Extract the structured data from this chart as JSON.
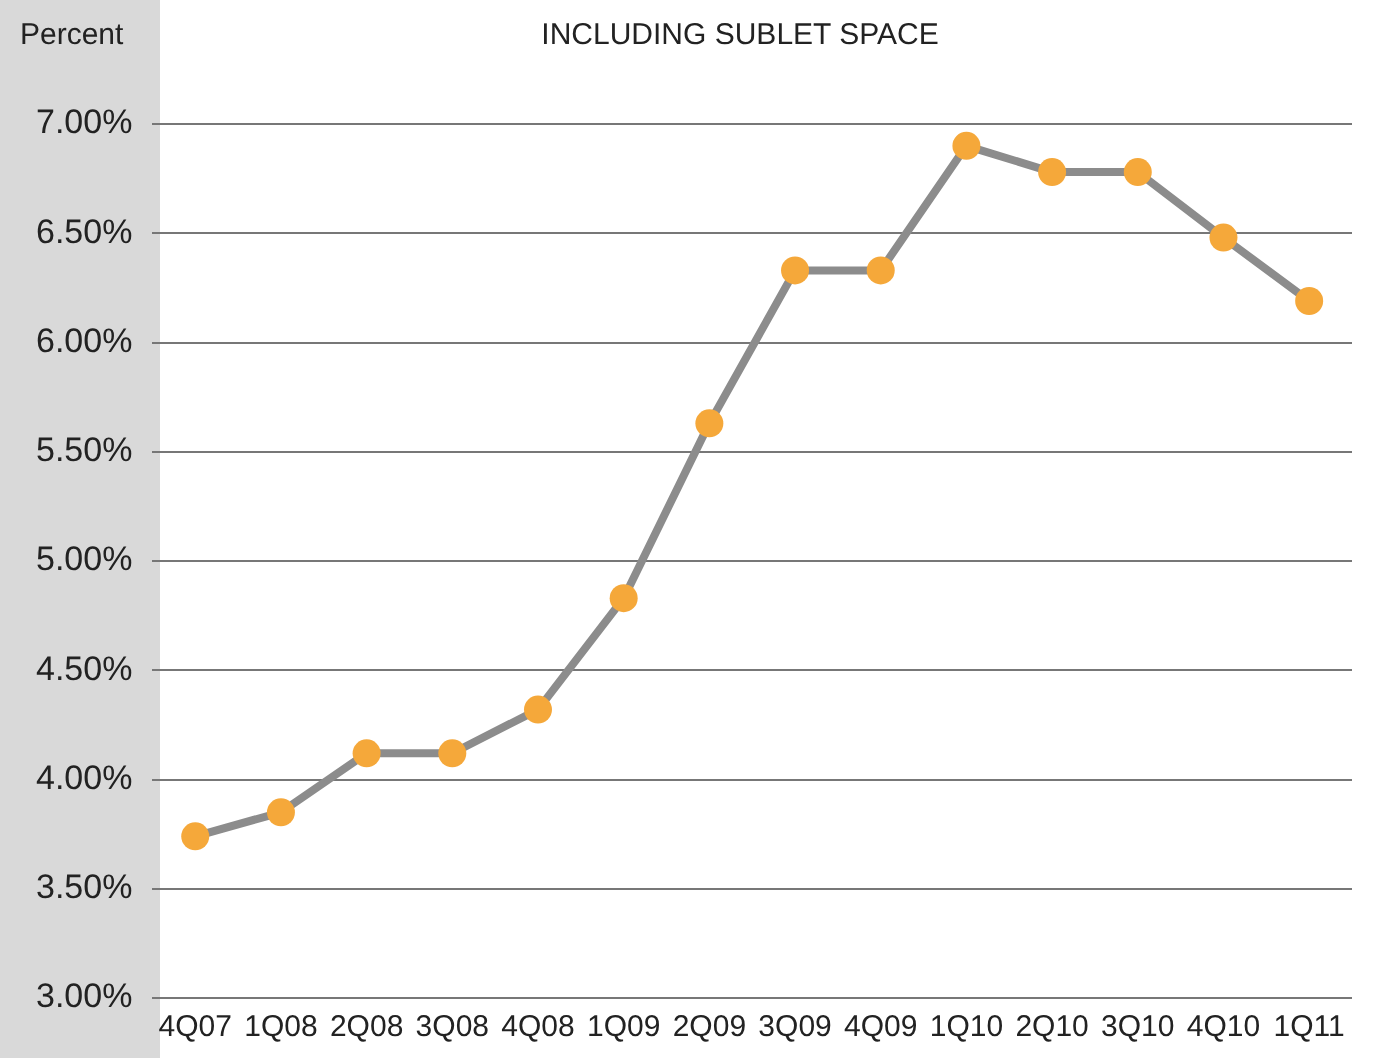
{
  "chart_data": {
    "type": "line",
    "title": "INCLUDING SUBLET SPACE",
    "ylabel": "Percent",
    "categories": [
      "4Q07",
      "1Q08",
      "2Q08",
      "3Q08",
      "4Q08",
      "1Q09",
      "2Q09",
      "3Q09",
      "4Q09",
      "1Q10",
      "2Q10",
      "3Q10",
      "4Q10",
      "1Q11"
    ],
    "series": [
      {
        "color": "#8c8c8c",
        "colors": [
          "#f5a83a",
          "#f5a83a",
          "#f5a83a",
          "#f5a83a",
          "#f5a83a",
          "#f5a83a",
          "#f5a83a",
          "#f5a83a",
          "#f5a83a",
          "#f5a83a",
          "#f5a83a",
          "#f5a83a",
          "#f5a83a",
          "#f5a83a"
        ],
        "values": [
          3.74,
          3.85,
          4.12,
          4.12,
          4.32,
          4.83,
          5.63,
          6.33,
          6.33,
          6.9,
          6.78,
          6.78,
          6.48,
          6.19
        ]
      }
    ],
    "marker": "circle",
    "ylim": [
      3,
      7
    ],
    "yticks": [
      {
        "value": 3,
        "label": "3.00%"
      },
      {
        "value": 3.5,
        "label": "3.50%"
      },
      {
        "value": 4,
        "label": "4.00%"
      },
      {
        "value": 4.5,
        "label": "4.50%"
      },
      {
        "value": 5,
        "label": "5.00%"
      },
      {
        "value": 5.5,
        "label": "5.50%"
      },
      {
        "value": 6,
        "label": "6.00%"
      },
      {
        "value": 6.5,
        "label": "6.50%"
      },
      {
        "value": 7,
        "label": "7.00%"
      }
    ],
    "grid": "y",
    "legend": false
  }
}
